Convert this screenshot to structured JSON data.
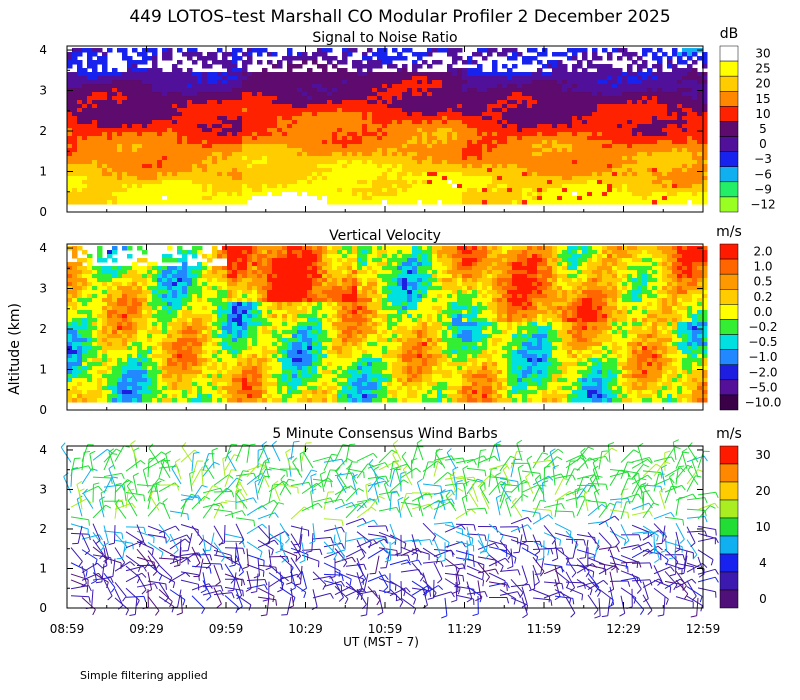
{
  "title": "449 LOTOS–test Marshall CO Modular Profiler  2 December 2025",
  "ylabel": "Altitude (km)",
  "xlabel": "UT  (MST – 7)",
  "footnote": "Simple filtering applied",
  "colors": {
    "frame": "#000000",
    "background": "#ffffff"
  },
  "chart_data": [
    {
      "type": "heatmap",
      "title": "Signal to Noise Ratio",
      "unit": "dB",
      "xlabel": "UT  (MST – 7)",
      "ylabel": "Altitude (km)",
      "x_ticks": [
        "08:59",
        "09:29",
        "09:59",
        "10:29",
        "10:59",
        "11:29",
        "11:59",
        "12:29",
        "12:59"
      ],
      "y_ticks": [
        "0",
        "1",
        "2",
        "3",
        "4"
      ],
      "ylim": [
        0,
        4.1
      ],
      "colorbar": [
        {
          "label": "30",
          "color": "#ffffff"
        },
        {
          "label": "25",
          "color": "#ffff00"
        },
        {
          "label": "20",
          "color": "#ffcc00"
        },
        {
          "label": "15",
          "color": "#ff8800"
        },
        {
          "label": "10",
          "color": "#ff2200"
        },
        {
          "label": "5",
          "color": "#5e0b6e"
        },
        {
          "label": "0",
          "color": "#50109a"
        },
        {
          "label": "−3",
          "color": "#1822ee"
        },
        {
          "label": "−6",
          "color": "#10b0f0"
        },
        {
          "label": "−9",
          "color": "#22ee66"
        },
        {
          "label": "−12",
          "color": "#99ff22"
        }
      ]
    },
    {
      "type": "heatmap",
      "title": "Vertical Velocity",
      "unit": "m/s",
      "xlabel": "UT  (MST – 7)",
      "ylabel": "Altitude (km)",
      "y_ticks": [
        "0",
        "1",
        "2",
        "3",
        "4"
      ],
      "ylim": [
        0,
        4.1
      ],
      "colorbar": [
        {
          "label": "2.0",
          "color": "#ff1a00"
        },
        {
          "label": "1.0",
          "color": "#ff6600"
        },
        {
          "label": "0.5",
          "color": "#ff9900"
        },
        {
          "label": "0.2",
          "color": "#ffcc00"
        },
        {
          "label": "0.0",
          "color": "#ffff00"
        },
        {
          "label": "−0.2",
          "color": "#33ee33"
        },
        {
          "label": "−0.5",
          "color": "#00e0e0"
        },
        {
          "label": "−1.0",
          "color": "#2288ff"
        },
        {
          "label": "−2.0",
          "color": "#1e1ee0"
        },
        {
          "label": "−5.0",
          "color": "#55109a"
        },
        {
          "label": "−10.0",
          "color": "#3a0048"
        }
      ]
    },
    {
      "type": "wind-barbs",
      "title": "5 Minute Consensus Wind Barbs",
      "unit": "m/s",
      "xlabel": "UT  (MST – 7)",
      "ylabel": "Altitude (km)",
      "y_ticks": [
        "0",
        "1",
        "2",
        "3",
        "4"
      ],
      "ylim": [
        0,
        4.1
      ],
      "colorbar": [
        {
          "label": "30",
          "color": "#ff1a00"
        },
        {
          "label": "",
          "color": "#ff8800"
        },
        {
          "label": "20",
          "color": "#ffcc00"
        },
        {
          "label": "",
          "color": "#aaee22"
        },
        {
          "label": "10",
          "color": "#22dd33"
        },
        {
          "label": "",
          "color": "#10b0f0"
        },
        {
          "label": "4",
          "color": "#1822ee"
        },
        {
          "label": "",
          "color": "#3c1ab0"
        },
        {
          "label": "0",
          "color": "#50107a"
        }
      ]
    }
  ]
}
